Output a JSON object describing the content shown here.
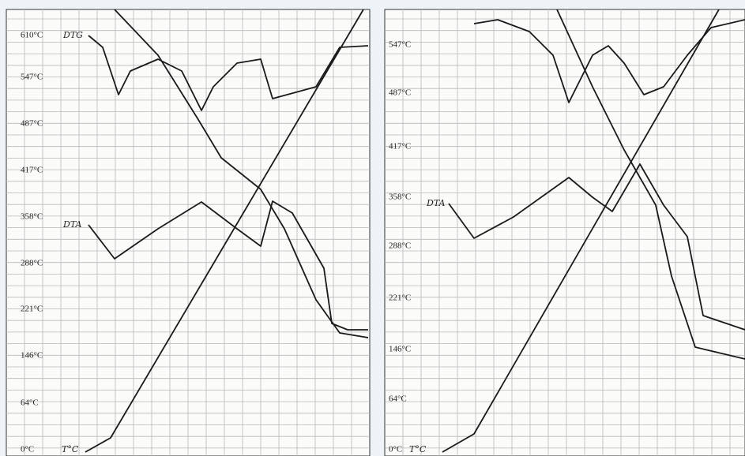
{
  "panels": [
    {
      "axis_labels": [
        "610°C",
        "547°C",
        "487°C",
        "417°C",
        "358°C",
        "288°C",
        "221°C",
        "146°C",
        "64°C",
        "0°C"
      ],
      "curve_labels": [
        "DTG",
        "DTA",
        "T°C"
      ]
    },
    {
      "axis_labels": [
        "547°C",
        "487°C",
        "417°C",
        "358°C",
        "288°C",
        "221°C",
        "146°C",
        "64°C",
        "0°C"
      ],
      "curve_labels": [
        "DTA",
        "T°C"
      ]
    }
  ]
}
